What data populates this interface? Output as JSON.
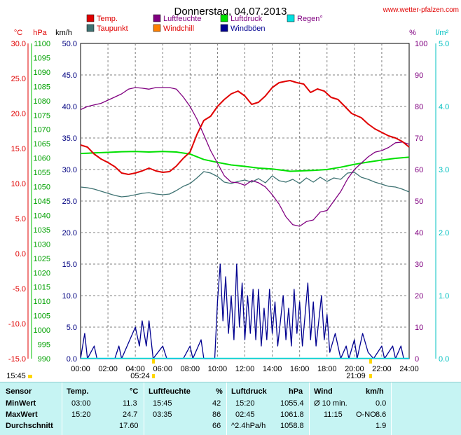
{
  "header": {
    "title": "Donnerstag, 04.07.2013",
    "website": "www.wetter-pfalzen.com"
  },
  "colors": {
    "temp": "#e00000",
    "dew": "#3f7373",
    "humidity": "#800080",
    "windchill": "#ff8000",
    "pressure": "#00e000",
    "gust": "#000090",
    "rain": "#00e0e0"
  },
  "chart_data": {
    "type": "line",
    "x_labels": [
      "00:00",
      "02:00",
      "04:00",
      "06:00",
      "08:00",
      "10:00",
      "12:00",
      "14:00",
      "16:00",
      "18:00",
      "20:00",
      "22:00",
      "24:00"
    ],
    "axes": {
      "temp_c": {
        "label": "°C",
        "range": [
          -15,
          30
        ],
        "ticks": [
          "30.0",
          "25.0",
          "20.0",
          "15.0",
          "10.0",
          "5.0",
          "0.0",
          "-5.0",
          "-10.0",
          "-15.0"
        ]
      },
      "pressure_hpa": {
        "label": "hPa",
        "range": [
          990,
          1100
        ],
        "ticks": [
          "1100",
          "1095",
          "1090",
          "1085",
          "1080",
          "1075",
          "1070",
          "1065",
          "1060",
          "1055",
          "1050",
          "1045",
          "1040",
          "1035",
          "1030",
          "1025",
          "1020",
          "1015",
          "1010",
          "1005",
          "1000",
          "995",
          "990"
        ]
      },
      "wind_kmh": {
        "label": "km/h",
        "range": [
          0,
          50
        ],
        "ticks": [
          "50.0",
          "45.0",
          "40.0",
          "35.0",
          "30.0",
          "25.0",
          "20.0",
          "15.0",
          "10.0",
          "5.0",
          "0.0"
        ]
      },
      "humidity_pct": {
        "label": "%",
        "range": [
          0,
          100
        ],
        "ticks": [
          "100",
          "90",
          "80",
          "70",
          "60",
          "50",
          "40",
          "30",
          "20",
          "10",
          "0"
        ]
      },
      "rain_lm2": {
        "label": "l/m²",
        "range": [
          0,
          5
        ],
        "ticks": [
          "5.0",
          "4.0",
          "3.0",
          "2.0",
          "1.0",
          "0.0"
        ]
      }
    },
    "legend": [
      "Temp.",
      "Taupunkt",
      "Luftfeuchte",
      "Windchill",
      "Luftdruck",
      "Windböen",
      "Regen°"
    ],
    "sunrise": "05:24",
    "sunset": "21:09",
    "sunrise_left": "15:45",
    "series": [
      {
        "name": "Temp.",
        "axis": "temp_c",
        "color": "#e00000",
        "points": [
          [
            0,
            15.5
          ],
          [
            0.5,
            15.2
          ],
          [
            1,
            14.2
          ],
          [
            1.5,
            13.5
          ],
          [
            2,
            13
          ],
          [
            2.5,
            12.4
          ],
          [
            3,
            11.5
          ],
          [
            3.5,
            11.3
          ],
          [
            4,
            11.5
          ],
          [
            4.5,
            11.8
          ],
          [
            5,
            12.2
          ],
          [
            5.5,
            11.8
          ],
          [
            6,
            11.6
          ],
          [
            6.5,
            11.7
          ],
          [
            7,
            12.5
          ],
          [
            7.5,
            13.6
          ],
          [
            8,
            14.5
          ],
          [
            8.5,
            17
          ],
          [
            9,
            19
          ],
          [
            9.5,
            19.6
          ],
          [
            10,
            21
          ],
          [
            10.5,
            22
          ],
          [
            11,
            22.8
          ],
          [
            11.5,
            23.2
          ],
          [
            12,
            22.5
          ],
          [
            12.5,
            21.3
          ],
          [
            13,
            21.6
          ],
          [
            13.5,
            22.5
          ],
          [
            14,
            23.7
          ],
          [
            14.5,
            24.4
          ],
          [
            15,
            24.6
          ],
          [
            15.3,
            24.7
          ],
          [
            15.8,
            24.4
          ],
          [
            16.3,
            24.2
          ],
          [
            16.8,
            23
          ],
          [
            17.3,
            23.5
          ],
          [
            17.8,
            23.2
          ],
          [
            18.3,
            22.3
          ],
          [
            18.8,
            22
          ],
          [
            19.3,
            21
          ],
          [
            19.8,
            20
          ],
          [
            20.5,
            19.4
          ],
          [
            21,
            18.5
          ],
          [
            21.5,
            17.8
          ],
          [
            22,
            17.3
          ],
          [
            22.5,
            16.8
          ],
          [
            23,
            16.5
          ],
          [
            23.5,
            16
          ],
          [
            24,
            15.2
          ]
        ]
      },
      {
        "name": "Taupunkt",
        "axis": "temp_c",
        "color": "#3f7373",
        "points": [
          [
            0,
            9.5
          ],
          [
            0.5,
            9.4
          ],
          [
            1,
            9.2
          ],
          [
            1.5,
            8.9
          ],
          [
            2,
            8.6
          ],
          [
            2.5,
            8.3
          ],
          [
            3,
            8.1
          ],
          [
            3.5,
            8.2
          ],
          [
            4,
            8.4
          ],
          [
            4.5,
            8.6
          ],
          [
            5,
            8.7
          ],
          [
            5.5,
            8.5
          ],
          [
            6,
            8.4
          ],
          [
            6.5,
            8.5
          ],
          [
            7,
            9
          ],
          [
            7.5,
            9.6
          ],
          [
            8,
            10
          ],
          [
            8.5,
            10.8
          ],
          [
            9,
            11.7
          ],
          [
            9.5,
            11.5
          ],
          [
            10,
            11
          ],
          [
            10.5,
            10.2
          ],
          [
            11,
            10
          ],
          [
            11.5,
            10.3
          ],
          [
            12,
            10.5
          ],
          [
            12.5,
            10.2
          ],
          [
            13,
            10.7
          ],
          [
            13.5,
            10.1
          ],
          [
            14,
            11.1
          ],
          [
            14.5,
            10.4
          ],
          [
            15,
            10.2
          ],
          [
            15.5,
            10.6
          ],
          [
            16,
            10
          ],
          [
            16.5,
            10.8
          ],
          [
            17,
            10.2
          ],
          [
            17.5,
            10.9
          ],
          [
            18,
            10.3
          ],
          [
            18.5,
            10.8
          ],
          [
            19,
            10.6
          ],
          [
            19.5,
            11.5
          ],
          [
            20,
            11.6
          ],
          [
            20.5,
            10.9
          ],
          [
            21,
            10.6
          ],
          [
            21.5,
            10.2
          ],
          [
            22,
            9.9
          ],
          [
            22.5,
            9.6
          ],
          [
            23,
            9.5
          ],
          [
            23.5,
            9.2
          ],
          [
            24,
            8.8
          ]
        ]
      },
      {
        "name": "Luftfeuchte",
        "axis": "humidity_pct",
        "color": "#800080",
        "points": [
          [
            0,
            79
          ],
          [
            0.5,
            80
          ],
          [
            1,
            80.5
          ],
          [
            1.5,
            81
          ],
          [
            2,
            82
          ],
          [
            2.5,
            83
          ],
          [
            3,
            84
          ],
          [
            3.5,
            85.5
          ],
          [
            4,
            86
          ],
          [
            4.5,
            85.8
          ],
          [
            5,
            85.5
          ],
          [
            5.5,
            86
          ],
          [
            6,
            86
          ],
          [
            6.5,
            86
          ],
          [
            7,
            85.5
          ],
          [
            7.5,
            83
          ],
          [
            8,
            80
          ],
          [
            8.5,
            76
          ],
          [
            9,
            71
          ],
          [
            9.5,
            66
          ],
          [
            10,
            62
          ],
          [
            10.5,
            58
          ],
          [
            11,
            56
          ],
          [
            11.5,
            55.8
          ],
          [
            12,
            55
          ],
          [
            12.5,
            56.5
          ],
          [
            13,
            55.8
          ],
          [
            13.5,
            54.5
          ],
          [
            14,
            52
          ],
          [
            14.5,
            49
          ],
          [
            15,
            45
          ],
          [
            15.5,
            42.5
          ],
          [
            16,
            42
          ],
          [
            16.5,
            43.5
          ],
          [
            17,
            44
          ],
          [
            17.5,
            46.5
          ],
          [
            18,
            47
          ],
          [
            18.5,
            50
          ],
          [
            19,
            53
          ],
          [
            19.5,
            57
          ],
          [
            20,
            60
          ],
          [
            20.5,
            62
          ],
          [
            21,
            64
          ],
          [
            21.5,
            65.5
          ],
          [
            22,
            66
          ],
          [
            22.5,
            67
          ],
          [
            23,
            68.5
          ],
          [
            23.5,
            68.7
          ],
          [
            24,
            68
          ]
        ]
      },
      {
        "name": "Luftdruck",
        "axis": "pressure_hpa",
        "color": "#00e000",
        "points": [
          [
            0,
            1061.6
          ],
          [
            1,
            1061.8
          ],
          [
            2,
            1062
          ],
          [
            3,
            1062.2
          ],
          [
            4,
            1062.3
          ],
          [
            5,
            1062.1
          ],
          [
            6,
            1062.3
          ],
          [
            7,
            1062.1
          ],
          [
            8,
            1061.4
          ],
          [
            9,
            1059.5
          ],
          [
            10,
            1058.5
          ],
          [
            11,
            1057.6
          ],
          [
            12,
            1057.1
          ],
          [
            13,
            1056.5
          ],
          [
            14,
            1056.2
          ],
          [
            15,
            1055.6
          ],
          [
            15.3,
            1055.4
          ],
          [
            16,
            1055.5
          ],
          [
            17,
            1055.7
          ],
          [
            18,
            1056.0
          ],
          [
            19,
            1056.8
          ],
          [
            20,
            1057.8
          ],
          [
            21,
            1058.6
          ],
          [
            22,
            1059.3
          ],
          [
            23,
            1059.9
          ],
          [
            24,
            1060.3
          ]
        ]
      },
      {
        "name": "Windböen",
        "axis": "wind_kmh",
        "color": "#000090",
        "points": [
          [
            0,
            0
          ],
          [
            0.3,
            4
          ],
          [
            0.5,
            0
          ],
          [
            1,
            2
          ],
          [
            1.2,
            0
          ],
          [
            2.5,
            0
          ],
          [
            2.8,
            2
          ],
          [
            3,
            0
          ],
          [
            4,
            5
          ],
          [
            4.3,
            2
          ],
          [
            4.5,
            6
          ],
          [
            4.8,
            2
          ],
          [
            5,
            6
          ],
          [
            5.3,
            0
          ],
          [
            6,
            2
          ],
          [
            6.3,
            0
          ],
          [
            7.5,
            0
          ],
          [
            8,
            2
          ],
          [
            8.2,
            0
          ],
          [
            8.8,
            3
          ],
          [
            9,
            0
          ],
          [
            9.8,
            0
          ],
          [
            10,
            9
          ],
          [
            10.2,
            15
          ],
          [
            10.4,
            6
          ],
          [
            10.6,
            13
          ],
          [
            10.8,
            4
          ],
          [
            11,
            10
          ],
          [
            11.2,
            3
          ],
          [
            11.4,
            15
          ],
          [
            11.6,
            5
          ],
          [
            11.8,
            12
          ],
          [
            12,
            3
          ],
          [
            12.2,
            10
          ],
          [
            12.4,
            4
          ],
          [
            12.6,
            11
          ],
          [
            12.8,
            3
          ],
          [
            13,
            11
          ],
          [
            13.2,
            2
          ],
          [
            13.4,
            8
          ],
          [
            13.6,
            3
          ],
          [
            13.8,
            11
          ],
          [
            14,
            4
          ],
          [
            14.2,
            9
          ],
          [
            14.4,
            2
          ],
          [
            14.6,
            6
          ],
          [
            14.8,
            10
          ],
          [
            15,
            3
          ],
          [
            15.2,
            8
          ],
          [
            15.4,
            2
          ],
          [
            15.6,
            11
          ],
          [
            15.8,
            4
          ],
          [
            16,
            9
          ],
          [
            16.2,
            2
          ],
          [
            16.4,
            7
          ],
          [
            16.6,
            12
          ],
          [
            16.8,
            3
          ],
          [
            17,
            9
          ],
          [
            17.2,
            2
          ],
          [
            17.4,
            6
          ],
          [
            17.6,
            10
          ],
          [
            17.8,
            3
          ],
          [
            18,
            7
          ],
          [
            18.2,
            1
          ],
          [
            18.6,
            4
          ],
          [
            19,
            0
          ],
          [
            19.4,
            2
          ],
          [
            19.6,
            0
          ],
          [
            20,
            3
          ],
          [
            20.2,
            0
          ],
          [
            20.6,
            4
          ],
          [
            21,
            1
          ],
          [
            21.4,
            0
          ],
          [
            22,
            2
          ],
          [
            22.2,
            0
          ],
          [
            22.8,
            2
          ],
          [
            23,
            0
          ],
          [
            23.4,
            2
          ],
          [
            23.6,
            0
          ],
          [
            24,
            0
          ]
        ]
      }
    ]
  },
  "table": {
    "headers": {
      "sensor": "Sensor",
      "temp": "Temp.",
      "temp_unit": "°C",
      "hum": "Luftfeuchte",
      "hum_unit": "%",
      "press": "Luftdruck",
      "press_unit": "hPa",
      "wind": "Wind",
      "wind_unit": "km/h"
    },
    "rows": [
      {
        "label": "MinWert",
        "t_time": "03:00",
        "t_val": "11.3",
        "h_time": "15:45",
        "h_val": "42",
        "p_time": "15:20",
        "p_val": "1055.4",
        "w_time": "Ø 10 min.",
        "w_val": "0.0"
      },
      {
        "label": "MaxWert",
        "t_time": "15:20",
        "t_val": "24.7",
        "h_time": "03:35",
        "h_val": "86",
        "p_time": "02:45",
        "p_val": "1061.8",
        "w_time": "11:15",
        "w_dir": "O-NO",
        "w_val": "8.6"
      },
      {
        "label": "Durchschnitt",
        "t_time": "",
        "t_val": "17.60",
        "h_time": "",
        "h_val": "66",
        "p_time": "^2.4hPa/h",
        "p_val": "1058.8",
        "w_time": "",
        "w_val": "1.9"
      }
    ]
  }
}
